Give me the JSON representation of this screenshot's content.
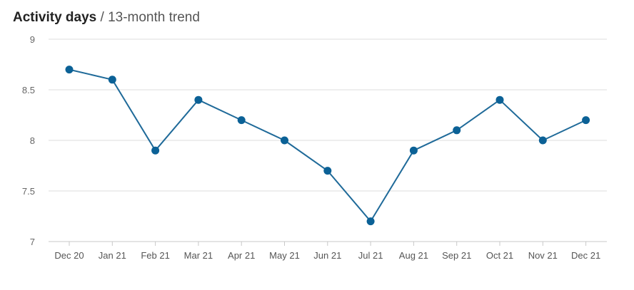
{
  "title": {
    "main": "Activity days",
    "separator": " / ",
    "sub": "13-month trend"
  },
  "colors": {
    "line": "#1f6a99",
    "point": "#0b6196",
    "grid": "#dcdcdc",
    "axis": "#c8c8c8"
  },
  "chart_data": {
    "type": "line",
    "title": "Activity days / 13-month trend",
    "xlabel": "",
    "ylabel": "",
    "categories": [
      "Dec 20",
      "Jan 21",
      "Feb 21",
      "Mar 21",
      "Apr 21",
      "May 21",
      "Jun 21",
      "Jul 21",
      "Aug 21",
      "Sep 21",
      "Oct 21",
      "Nov 21",
      "Dec 21"
    ],
    "series": [
      {
        "values": [
          8.7,
          8.6,
          7.9,
          8.4,
          8.2,
          8.0,
          7.7,
          7.2,
          7.9,
          8.1,
          8.4,
          8.0,
          8.2
        ]
      }
    ],
    "ylim": [
      7,
      9
    ],
    "yticks": [
      9,
      8.5,
      8,
      7.5,
      7
    ],
    "grid": true,
    "legend": "none"
  }
}
